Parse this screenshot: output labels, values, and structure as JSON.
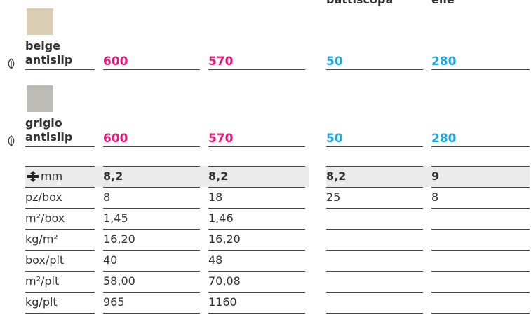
{
  "headers": [
    null,
    null,
    "battiscopa",
    "elle"
  ],
  "value_colors": [
    "#e0197d",
    "#e0197d",
    "#1ea7dc",
    "#1ea7dc"
  ],
  "products": [
    {
      "name": [
        "beige",
        "antislip"
      ],
      "swatch": "#d9cdb4",
      "values": [
        "600",
        "570",
        "50",
        "280"
      ]
    },
    {
      "name": [
        "grigio",
        "antislip"
      ],
      "swatch": "#bdbbb6",
      "values": [
        "600",
        "570",
        "50",
        "280"
      ]
    }
  ],
  "table": {
    "rows": [
      {
        "label": "mm",
        "values": [
          "8,2",
          "8,2",
          "8,2",
          "9"
        ]
      },
      {
        "label": "pz/box",
        "values": [
          "8",
          "18",
          "25",
          "8"
        ]
      },
      {
        "label": "m²/box",
        "values": [
          "1,45",
          "1,46",
          null,
          null
        ]
      },
      {
        "label": "kg/m²",
        "values": [
          "16,20",
          "16,20",
          null,
          null
        ]
      },
      {
        "label": "box/plt",
        "values": [
          "40",
          "48",
          null,
          null
        ]
      },
      {
        "label": "m²/plt",
        "values": [
          "58,00",
          "70,08",
          null,
          null
        ]
      },
      {
        "label": "kg/plt",
        "values": [
          "965",
          "1160",
          null,
          null
        ]
      }
    ]
  }
}
